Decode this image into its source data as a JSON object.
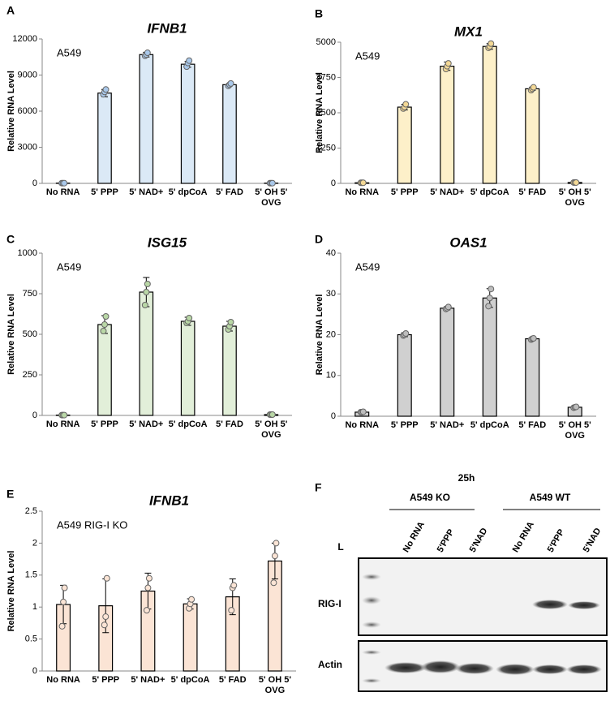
{
  "chart_data": [
    {
      "type": "bar",
      "panel": "A",
      "title": "IFNB1",
      "annotation": "A549",
      "y_label": "Relative RNA Level",
      "categories": [
        "No RNA",
        "5' PPP",
        "5' NAD+",
        "5' dpCoA",
        "5' FAD",
        "5' OH 5' OVG"
      ],
      "values": [
        20,
        7500,
        10700,
        9900,
        8200,
        20
      ],
      "errors": [
        0,
        300,
        200,
        250,
        100,
        0
      ],
      "points": [
        [
          20,
          20,
          20
        ],
        [
          7400,
          7600,
          7800
        ],
        [
          10600,
          10700,
          10850
        ],
        [
          9700,
          10000,
          10200
        ],
        [
          8100,
          8200,
          8300
        ],
        [
          20,
          20,
          20
        ]
      ],
      "color": "#dbe9f6",
      "point_color": "#a9c8ea",
      "ylim": [
        0,
        12000
      ],
      "yticks": [
        0,
        3000,
        6000,
        9000,
        12000
      ]
    },
    {
      "type": "bar",
      "panel": "B",
      "title": "MX1",
      "annotation": "A549",
      "y_label": "Relative RNA Level",
      "categories": [
        "No RNA",
        "5' PPP",
        "5' NAD+",
        "5' dpCoA",
        "5' FAD",
        "5' OH 5' OVG"
      ],
      "values": [
        20,
        2700,
        4150,
        4850,
        3350,
        30
      ],
      "errors": [
        0,
        100,
        150,
        100,
        60,
        0
      ],
      "points": [
        [
          20,
          20,
          20
        ],
        [
          2650,
          2700,
          2800
        ],
        [
          4050,
          4150,
          4250
        ],
        [
          4800,
          4850,
          4950
        ],
        [
          3300,
          3350,
          3400
        ],
        [
          30,
          30,
          30
        ]
      ],
      "color": "#fdf0c9",
      "point_color": "#f3d895",
      "ylim": [
        0,
        5000
      ],
      "yticks": [
        0,
        1250,
        2500,
        3750,
        5000
      ]
    },
    {
      "type": "bar",
      "panel": "C",
      "title": "ISG15",
      "annotation": "A549",
      "y_label": "Relative RNA Level",
      "categories": [
        "No RNA",
        "5' PPP",
        "5' NAD+",
        "5' dpCoA",
        "5' FAD",
        "5' OH 5' OVG"
      ],
      "values": [
        2,
        560,
        760,
        580,
        550,
        5
      ],
      "errors": [
        0,
        55,
        90,
        25,
        30,
        2
      ],
      "points": [
        [
          2,
          2,
          2
        ],
        [
          520,
          560,
          610
        ],
        [
          680,
          760,
          810
        ],
        [
          570,
          580,
          600
        ],
        [
          530,
          550,
          575
        ],
        [
          5,
          5,
          5
        ]
      ],
      "color": "#e2efd9",
      "point_color": "#b9d7a6",
      "ylim": [
        0,
        1000
      ],
      "yticks": [
        0,
        250,
        500,
        750,
        1000
      ]
    },
    {
      "type": "bar",
      "panel": "D",
      "title": "OAS1",
      "annotation": "A549",
      "y_label": "Relative RNA Level",
      "categories": [
        "No RNA",
        "5' PPP",
        "5' NAD+",
        "5' dpCoA",
        "5' FAD",
        "5' OH 5' OVG"
      ],
      "values": [
        1,
        20,
        26.5,
        29,
        19,
        2.2
      ],
      "errors": [
        0.3,
        0.5,
        0.4,
        2.3,
        0.3,
        0.2
      ],
      "points": [
        [
          1,
          1,
          1.1
        ],
        [
          19.8,
          20,
          20.3
        ],
        [
          26.3,
          26.5,
          26.8
        ],
        [
          27,
          29,
          31.2
        ],
        [
          18.8,
          19,
          19.1
        ],
        [
          2.1,
          2.2,
          2.3
        ]
      ],
      "color": "#d0d0d0",
      "point_color": "#bdbdbd",
      "ylim": [
        0,
        40
      ],
      "yticks": [
        0,
        10,
        20,
        30,
        40
      ]
    },
    {
      "type": "bar",
      "panel": "E",
      "title": "IFNB1",
      "annotation": "A549 RIG-I KO",
      "y_label": "Relative RNA Level",
      "categories": [
        "No RNA",
        "5' PPP",
        "5' NAD+",
        "5' dpCoA",
        "5' FAD",
        "5' OH 5' OVG"
      ],
      "values": [
        1.04,
        1.02,
        1.25,
        1.05,
        1.16,
        1.72
      ],
      "errors": [
        0.3,
        0.42,
        0.28,
        0.08,
        0.28,
        0.28
      ],
      "points": [
        [
          0.7,
          1.08,
          1.3
        ],
        [
          0.72,
          0.85,
          1.45
        ],
        [
          0.95,
          1.3,
          1.45
        ],
        [
          0.98,
          1.05,
          1.12
        ],
        [
          0.95,
          1.3,
          1.34
        ],
        [
          1.38,
          1.8,
          2.0
        ]
      ],
      "color": "#fbe4d5",
      "point_color": "#fbe4d5",
      "ylim": [
        0,
        2.5
      ],
      "yticks": [
        0,
        0.5,
        1,
        1.5,
        2,
        2.5
      ]
    }
  ],
  "blot": {
    "panel": "F",
    "time": "25h",
    "groups": [
      "A549 KO",
      "A549 WT"
    ],
    "ladder": "L",
    "lanes": [
      "No RNA",
      "5'PPP",
      "5'NAD",
      "No RNA",
      "5'PPP",
      "5'NAD"
    ],
    "rows": [
      "RIG-I",
      "Actin"
    ]
  }
}
